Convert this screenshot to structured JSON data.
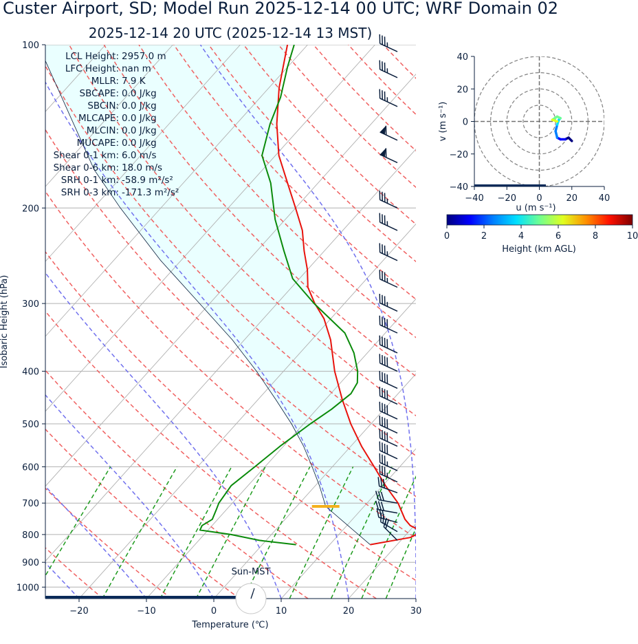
{
  "title": "Custer Airport, SD; Model Run 2025-12-14 00 UTC; WRF Domain 02",
  "subtitle": "2025-12-14 20 UTC  (2025-12-14 13 MST)",
  "colors": {
    "temperature": "#e8120c",
    "dewpoint": "#0a8a0a",
    "parcel": "#0a1e3c",
    "cape_fill": "#eaffff",
    "isobar": "#b0b0b0",
    "dry_adiabat": "#f06060",
    "moist_adiabat": "#7070ee",
    "mixing_ratio": "#1c9a1c",
    "text": "#0a1e3c",
    "lcl_marker": "#f4b01c"
  },
  "indices": [
    {
      "label": "LCL Height:",
      "value": "2957.0 m"
    },
    {
      "label": "LFC Height:",
      "value": "nan m"
    },
    {
      "label": "MLLR:",
      "value": "7.9 K"
    },
    {
      "label": "SBCAPE:",
      "value": "0.0 J/kg"
    },
    {
      "label": "SBCIN:",
      "value": "0.0 J/kg"
    },
    {
      "label": "MLCAPE:",
      "value": "0.0 J/kg"
    },
    {
      "label": "MLCIN:",
      "value": "0.0 J/kg"
    },
    {
      "label": "MUCAPE:",
      "value": "0.0 J/kg"
    },
    {
      "label": "Shear 0-1 km:",
      "value": "6.0 m/s"
    },
    {
      "label": "Shear 0-6 km:",
      "value": "18.0 m/s"
    },
    {
      "label": "SRH 0-1 km:",
      "value": "-58.9 m²/s²"
    },
    {
      "label": "SRH 0-3 km:",
      "value": "-171.3 m²/s²"
    }
  ],
  "sun_label": "Sun-MST",
  "chart_data": [
    {
      "type": "line",
      "subtype": "skew-t",
      "xlabel": "Temperature (℃)",
      "ylabel": "Isobaric Height (hPa)",
      "xlim": [
        -25,
        30
      ],
      "ylim": [
        1050,
        100
      ],
      "y_scale": "log",
      "x_ticks": [
        -20,
        -10,
        0,
        10,
        20,
        30
      ],
      "x_tick_labels": [
        "−20",
        "−10",
        "0",
        "10",
        "20",
        "30"
      ],
      "y_ticks": [
        100,
        200,
        300,
        400,
        500,
        600,
        700,
        800,
        900,
        1000
      ],
      "y_tick_labels": [
        "100",
        "200",
        "300",
        "400",
        "500",
        "600",
        "700",
        "800",
        "900",
        "1000"
      ],
      "grid": true,
      "series": [
        {
          "kind": "temperature",
          "points": [
            [
              835,
              16
            ],
            [
              810,
              21
            ],
            [
              790,
              22.0
            ],
            [
              770,
              19.4
            ],
            [
              750,
              17.8
            ],
            [
              700,
              14.6
            ],
            [
              650,
              10.4
            ],
            [
              600,
              6.2
            ],
            [
              550,
              1.6
            ],
            [
              500,
              -3.0
            ],
            [
              450,
              -7.6
            ],
            [
              400,
              -12.4
            ],
            [
              350,
              -17.2
            ],
            [
              320,
              -21.0
            ],
            [
              300,
              -24.4
            ],
            [
              280,
              -27.6
            ],
            [
              260,
              -30.0
            ],
            [
              240,
              -33.0
            ],
            [
              220,
              -36.0
            ],
            [
              200,
              -40.0
            ],
            [
              180,
              -44.5
            ],
            [
              160,
              -49.5
            ],
            [
              140,
              -54.0
            ],
            [
              120,
              -58.5
            ],
            [
              100,
              -63.0
            ]
          ]
        },
        {
          "kind": "dewpoint",
          "points": [
            [
              835,
              5
            ],
            [
              820,
              -1
            ],
            [
              800,
              -6
            ],
            [
              785,
              -11.2
            ],
            [
              770,
              -11.5
            ],
            [
              750,
              -10.8
            ],
            [
              720,
              -11.5
            ],
            [
              700,
              -12.0
            ],
            [
              650,
              -12.5
            ],
            [
              600,
              -11.5
            ],
            [
              550,
              -10.5
            ],
            [
              500,
              -9.0
            ],
            [
              470,
              -7.8
            ],
            [
              440,
              -7.0
            ],
            [
              420,
              -7.5
            ],
            [
              400,
              -9.0
            ],
            [
              370,
              -12.0
            ],
            [
              340,
              -16.0
            ],
            [
              300,
              -24.5
            ],
            [
              270,
              -31.0
            ],
            [
              240,
              -36.0
            ],
            [
              210,
              -41.5
            ],
            [
              180,
              -47.0
            ],
            [
              160,
              -52.0
            ],
            [
              140,
              -55.0
            ],
            [
              125,
              -57.0
            ],
            [
              110,
              -60.0
            ],
            [
              100,
              -62.0
            ]
          ]
        },
        {
          "kind": "parcel",
          "points": [
            [
              835,
              16
            ],
            [
              710,
              4.3
            ],
            [
              650,
              0.6
            ],
            [
              600,
              -3.0
            ],
            [
              550,
              -7.0
            ],
            [
              500,
              -11.8
            ],
            [
              450,
              -17.5
            ],
            [
              400,
              -24.0
            ],
            [
              350,
              -31.8
            ],
            [
              300,
              -41.5
            ],
            [
              250,
              -53.0
            ],
            [
              200,
              -66.0
            ],
            [
              170,
              -75.0
            ],
            [
              100,
              -100.0
            ]
          ]
        }
      ],
      "lcl_pressure_hpa": 710,
      "wind_barbs_kt": [
        {
          "p": 820,
          "speed": 20,
          "dir": 315
        },
        {
          "p": 790,
          "speed": 25,
          "dir": 300
        },
        {
          "p": 760,
          "speed": 30,
          "dir": 285
        },
        {
          "p": 730,
          "speed": 30,
          "dir": 280
        },
        {
          "p": 700,
          "speed": 30,
          "dir": 280
        },
        {
          "p": 670,
          "speed": 30,
          "dir": 290
        },
        {
          "p": 640,
          "speed": 35,
          "dir": 295
        },
        {
          "p": 610,
          "speed": 35,
          "dir": 295
        },
        {
          "p": 580,
          "speed": 40,
          "dir": 295
        },
        {
          "p": 550,
          "speed": 40,
          "dir": 295
        },
        {
          "p": 520,
          "speed": 40,
          "dir": 295
        },
        {
          "p": 490,
          "speed": 40,
          "dir": 295
        },
        {
          "p": 460,
          "speed": 40,
          "dir": 295
        },
        {
          "p": 430,
          "speed": 40,
          "dir": 295
        },
        {
          "p": 400,
          "speed": 40,
          "dir": 295
        },
        {
          "p": 370,
          "speed": 40,
          "dir": 295
        },
        {
          "p": 340,
          "speed": 40,
          "dir": 295
        },
        {
          "p": 310,
          "speed": 35,
          "dir": 295
        },
        {
          "p": 280,
          "speed": 35,
          "dir": 295
        },
        {
          "p": 250,
          "speed": 35,
          "dir": 295
        },
        {
          "p": 220,
          "speed": 35,
          "dir": 295
        },
        {
          "p": 200,
          "speed": 35,
          "dir": 295
        },
        {
          "p": 165,
          "speed": 60,
          "dir": 295
        },
        {
          "p": 150,
          "speed": 60,
          "dir": 295
        },
        {
          "p": 130,
          "speed": 35,
          "dir": 295
        },
        {
          "p": 115,
          "speed": 35,
          "dir": 295
        },
        {
          "p": 103,
          "speed": 35,
          "dir": 295
        }
      ]
    },
    {
      "type": "line",
      "subtype": "hodograph",
      "xlabel": "u (m s⁻¹)",
      "ylabel": "v (m s⁻¹)",
      "xlim": [
        -40,
        40
      ],
      "ylim": [
        -40,
        40
      ],
      "x_ticks": [
        -40,
        -20,
        0,
        20,
        40
      ],
      "x_tick_labels": [
        "−40",
        "−20",
        "0",
        "20",
        "40"
      ],
      "y_ticks": [
        -40,
        -20,
        0,
        20,
        40
      ],
      "y_tick_labels": [
        "−40",
        "−20",
        "0",
        "20",
        "40"
      ],
      "rings": [
        10,
        20,
        30,
        40
      ],
      "points": [
        {
          "u": 20,
          "v": -12,
          "h": 0.0
        },
        {
          "u": 18,
          "v": -10,
          "h": 0.3
        },
        {
          "u": 16,
          "v": -11,
          "h": 0.7
        },
        {
          "u": 13,
          "v": -11,
          "h": 1.2
        },
        {
          "u": 11,
          "v": -10,
          "h": 1.8
        },
        {
          "u": 10,
          "v": -6,
          "h": 2.4
        },
        {
          "u": 11,
          "v": -2,
          "h": 3.0
        },
        {
          "u": 12,
          "v": 1,
          "h": 3.6
        },
        {
          "u": 13,
          "v": 2,
          "h": 4.2
        },
        {
          "u": 11,
          "v": 3,
          "h": 5.0
        },
        {
          "u": 8,
          "v": 1,
          "h": 6.0
        },
        {
          "u": 11,
          "v": 0,
          "h": 7.0
        }
      ],
      "colorbar": {
        "label": "Height (km AGL)",
        "range": [
          0,
          10
        ],
        "ticks": [
          0,
          2,
          4,
          6,
          8,
          10
        ],
        "colors": [
          "#00007f",
          "#0000ff",
          "#0080ff",
          "#00e0ff",
          "#70ff90",
          "#e0ff20",
          "#ff9000",
          "#ff1000",
          "#7f0000"
        ]
      }
    }
  ]
}
